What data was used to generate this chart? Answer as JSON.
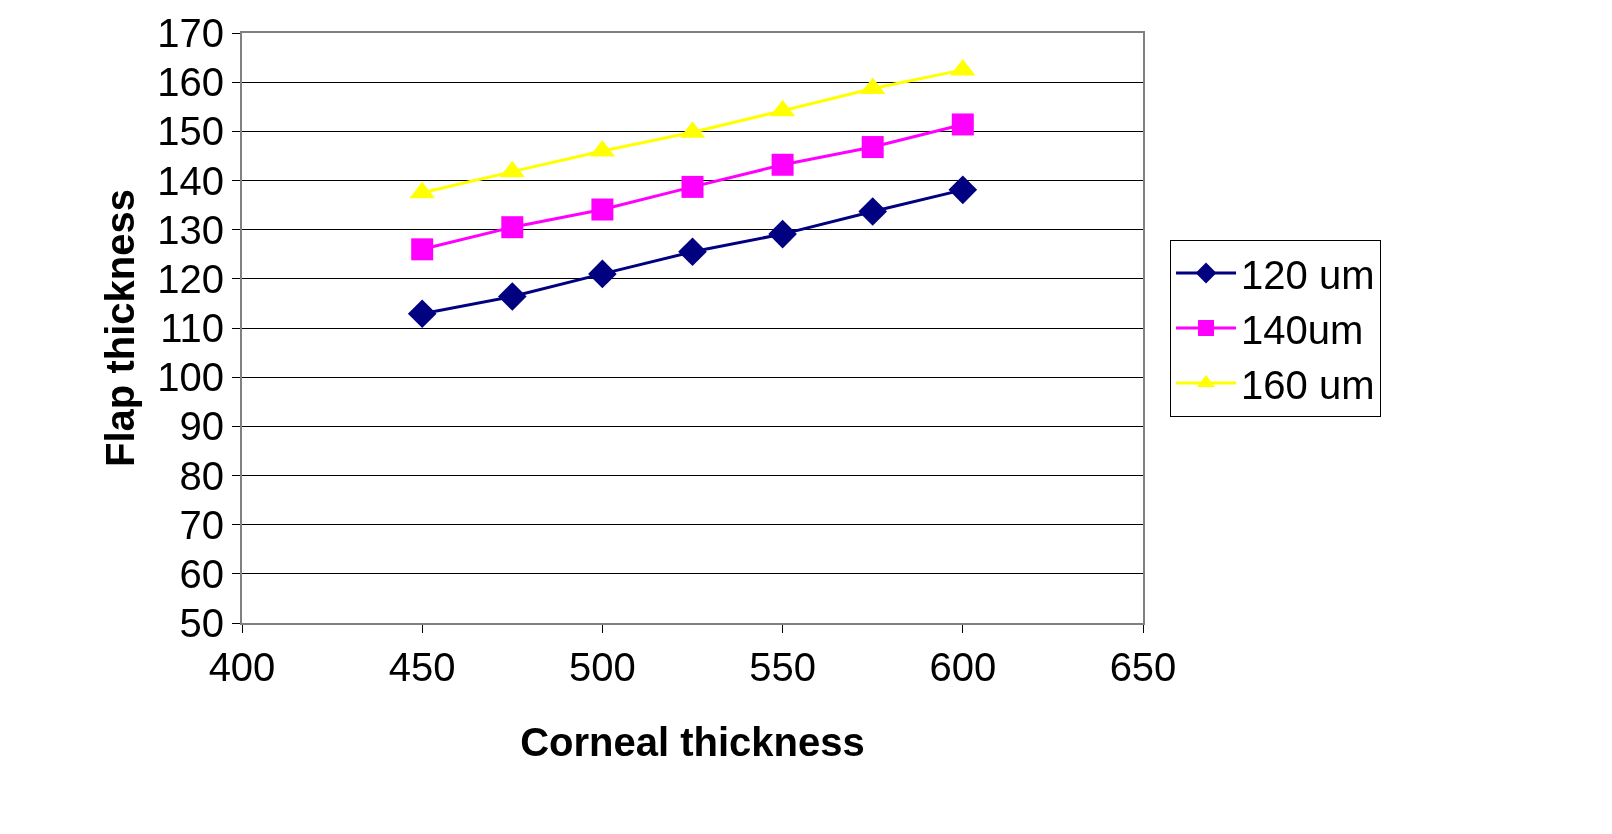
{
  "chart_data": {
    "type": "line",
    "xlabel": "Corneal thickness",
    "ylabel": "Flap thickness",
    "x": [
      450,
      475,
      500,
      525,
      550,
      575,
      600
    ],
    "series": [
      {
        "name": "120 um",
        "color": "#000080",
        "marker": "diamond",
        "values": [
          112.9,
          116.4,
          121,
          125.5,
          129.1,
          133.7,
          138.1
        ]
      },
      {
        "name": "140um",
        "color": "#ff00ff",
        "marker": "square",
        "values": [
          126,
          130.5,
          134.1,
          138.7,
          143.2,
          146.8,
          151.4
        ]
      },
      {
        "name": "160 um",
        "color": "#ffff00",
        "marker": "triangle",
        "values": [
          137.5,
          141.8,
          146,
          149.8,
          154.2,
          158.7,
          162.5
        ]
      }
    ],
    "xlim": [
      400,
      650
    ],
    "xticks": [
      400,
      450,
      500,
      550,
      600,
      650
    ],
    "ylim": [
      50,
      170
    ],
    "yticks": [
      50,
      60,
      70,
      80,
      90,
      100,
      110,
      120,
      130,
      140,
      150,
      160,
      170
    ],
    "grid": "y",
    "legend": "right"
  }
}
